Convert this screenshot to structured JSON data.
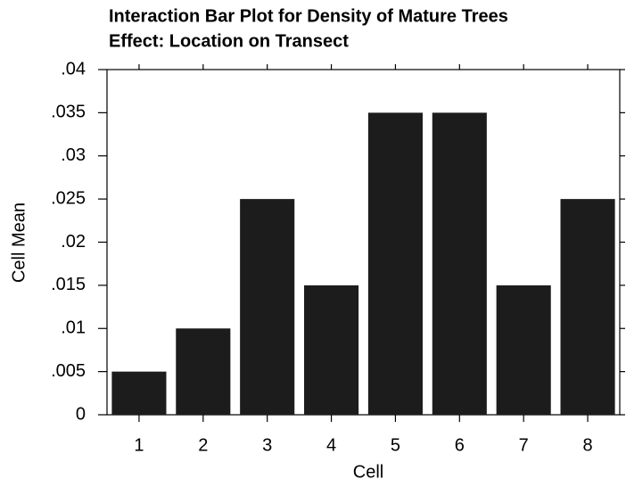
{
  "chart_data": {
    "type": "bar",
    "title": "Interaction Bar Plot for Density of Mature Trees",
    "subtitle": "Effect: Location on Transect",
    "x_label": "Cell",
    "y_label": "Cell Mean",
    "categories": [
      "1",
      "2",
      "3",
      "4",
      "5",
      "6",
      "7",
      "8"
    ],
    "values": [
      0.005,
      0.01,
      0.025,
      0.015,
      0.035,
      0.035,
      0.015,
      0.025
    ],
    "color": "#1c1c1c",
    "ylim": [
      0,
      0.04
    ],
    "yticks": [
      0,
      {
        "value": 0.005,
        "label": ".005"
      },
      {
        "value": 0.01,
        "label": ".01"
      },
      {
        "value": 0.015,
        "label": ".015"
      },
      {
        "value": 0.02,
        "label": ".02"
      },
      {
        "value": 0.025,
        "label": ".025"
      },
      {
        "value": 0.03,
        "label": ".03"
      },
      {
        "value": 0.035,
        "label": ".035"
      },
      {
        "value": 0.04,
        "label": ".04"
      }
    ],
    "grid": false
  }
}
